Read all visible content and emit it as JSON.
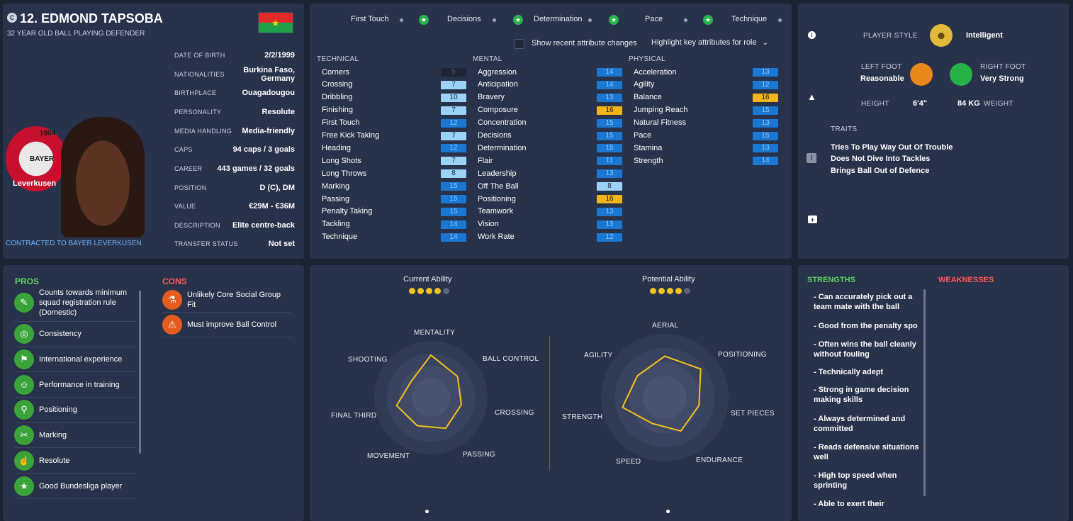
{
  "profile": {
    "club_badge": "C",
    "title": "12. EDMOND TAPSOBA",
    "subtitle": "32 YEAR OLD BALL PLAYING DEFENDER",
    "flag_colors": [
      "#e32a2a",
      "#1fa24a",
      "#f7d117"
    ],
    "rows": [
      {
        "k": "DATE OF BIRTH",
        "v": "2/2/1999"
      },
      {
        "k": "NATIONALITIES",
        "v": "Burkina Faso, Germany"
      },
      {
        "k": "BIRTHPLACE",
        "v": "Ouagadougou"
      },
      {
        "k": "PERSONALITY",
        "v": "Resolute"
      },
      {
        "k": "MEDIA HANDLING",
        "v": "Media-friendly"
      },
      {
        "k": "CAPS",
        "v": "94 caps / 3 goals"
      },
      {
        "k": "CAREER",
        "v": "443  games /   32  goals"
      },
      {
        "k": "POSITION",
        "v": "D (C), DM"
      },
      {
        "k": "VALUE",
        "v": "€29M - €36M"
      },
      {
        "k": "DESCRIPTION",
        "v": "Elite centre-back"
      },
      {
        "k": "TRANSFER STATUS",
        "v": "Not set"
      }
    ],
    "crest_text_top": "1904",
    "crest_text_mid": "BAYER",
    "crest_text_bottom": "Leverkusen",
    "contracted": "CONTRACTED TO BAYER LEVERKUSEN"
  },
  "attributes": {
    "tabs": [
      "First Touch",
      "Decisions",
      "Determination",
      "Pace",
      "Technique"
    ],
    "show_changes": "Show recent attribute changes",
    "highlight": "Highlight key attributes for role",
    "headers": [
      "TECHNICAL",
      "MENTAL",
      "PHYSICAL"
    ],
    "technical": [
      {
        "n": "Corners",
        "v": "5",
        "c": "dark"
      },
      {
        "n": "Crossing",
        "v": "7",
        "c": "light"
      },
      {
        "n": "Dribbling",
        "v": "10",
        "c": "light"
      },
      {
        "n": "Finishing",
        "v": "7",
        "c": "light"
      },
      {
        "n": "First Touch",
        "v": "12",
        "c": "blue"
      },
      {
        "n": "Free Kick Taking",
        "v": "7",
        "c": "light"
      },
      {
        "n": "Heading",
        "v": "12",
        "c": "blue"
      },
      {
        "n": "Long Shots",
        "v": "7",
        "c": "light"
      },
      {
        "n": "Long Throws",
        "v": "8",
        "c": "light"
      },
      {
        "n": "Marking",
        "v": "15",
        "c": "blue"
      },
      {
        "n": "Passing",
        "v": "15",
        "c": "blue"
      },
      {
        "n": "Penalty Taking",
        "v": "15",
        "c": "blue"
      },
      {
        "n": "Tackling",
        "v": "14",
        "c": "blue"
      },
      {
        "n": "Technique",
        "v": "14",
        "c": "blue"
      }
    ],
    "mental": [
      {
        "n": "Aggression",
        "v": "14",
        "c": "blue"
      },
      {
        "n": "Anticipation",
        "v": "14",
        "c": "blue"
      },
      {
        "n": "Bravery",
        "v": "13",
        "c": "blue"
      },
      {
        "n": "Composure",
        "v": "16",
        "c": "yellow"
      },
      {
        "n": "Concentration",
        "v": "15",
        "c": "blue"
      },
      {
        "n": "Decisions",
        "v": "15",
        "c": "blue"
      },
      {
        "n": "Determination",
        "v": "15",
        "c": "blue"
      },
      {
        "n": "Flair",
        "v": "11",
        "c": "blue"
      },
      {
        "n": "Leadership",
        "v": "13",
        "c": "blue"
      },
      {
        "n": "Off The Ball",
        "v": "8",
        "c": "light"
      },
      {
        "n": "Positioning",
        "v": "16",
        "c": "yellow"
      },
      {
        "n": "Teamwork",
        "v": "13",
        "c": "blue"
      },
      {
        "n": "Vision",
        "v": "13",
        "c": "blue"
      },
      {
        "n": "Work Rate",
        "v": "12",
        "c": "blue"
      }
    ],
    "physical": [
      {
        "n": "Acceleration",
        "v": "13",
        "c": "blue"
      },
      {
        "n": "Agility",
        "v": "12",
        "c": "blue"
      },
      {
        "n": "Balance",
        "v": "16",
        "c": "yellow"
      },
      {
        "n": "Jumping Reach",
        "v": "15",
        "c": "blue"
      },
      {
        "n": "Natural Fitness",
        "v": "13",
        "c": "blue"
      },
      {
        "n": "Pace",
        "v": "15",
        "c": "blue"
      },
      {
        "n": "Stamina",
        "v": "13",
        "c": "blue"
      },
      {
        "n": "Strength",
        "v": "14",
        "c": "blue"
      }
    ]
  },
  "style": {
    "player_style_label": "PLAYER STYLE",
    "player_style": "Intelligent",
    "left_foot_label": "LEFT FOOT",
    "left_foot": "Reasonable",
    "right_foot_label": "RIGHT FOOT",
    "right_foot": "Very Strong",
    "height_label": "HEIGHT",
    "height": "6'4\"",
    "weight": "84 KG",
    "weight_label": "WEIGHT",
    "traits_label": "TRAITS",
    "traits": [
      "Tries To Play Way Out Of Trouble",
      "Does Not Dive Into Tackles",
      "Brings Ball Out of Defence"
    ]
  },
  "pros_cons": {
    "pros_label": "PROS",
    "cons_label": "CONS",
    "pros": [
      "Counts towards minimum squad registration rule (Domestic)",
      "Consistency",
      "International experience",
      "Performance in training",
      "Positioning",
      "Marking",
      "Resolute",
      "Good Bundesliga player"
    ],
    "cons": [
      "Unlikely Core Social Group Fit",
      "Must improve Ball Control"
    ]
  },
  "ability": {
    "current_label": "Current Ability",
    "potential_label": "Potential Ability",
    "current_stars": 4,
    "potential_stars": 4,
    "max_stars": 5,
    "radar1": {
      "labels": [
        "MENTALITY",
        "BALL CONTROL",
        "CROSSING",
        "PASSING",
        "MOVEMENT",
        "FINAL THIRD",
        "SHOOTING"
      ],
      "values": [
        0.75,
        0.6,
        0.55,
        0.6,
        0.55,
        0.62,
        0.45
      ]
    },
    "radar2": {
      "labels": [
        "AERIAL",
        "POSITIONING",
        "SET PIECES",
        "ENDURANCE",
        "SPEED",
        "STRENGTH",
        "AGILITY"
      ],
      "values": [
        0.65,
        0.72,
        0.55,
        0.58,
        0.45,
        0.68,
        0.55
      ]
    }
  },
  "sw": {
    "strengths_label": "STRENGTHS",
    "weaknesses_label": "WEAKNESSES",
    "strengths": [
      "- Can accurately pick out a team mate with the ball",
      "- Good from the penalty spo",
      "- Often wins the ball cleanly without fouling",
      "- Technically adept",
      "- Strong in game decision making skills",
      "- Always determined and committed",
      "- Reads defensive situations well",
      "- High top speed when sprinting",
      "- Able to exert their"
    ]
  }
}
